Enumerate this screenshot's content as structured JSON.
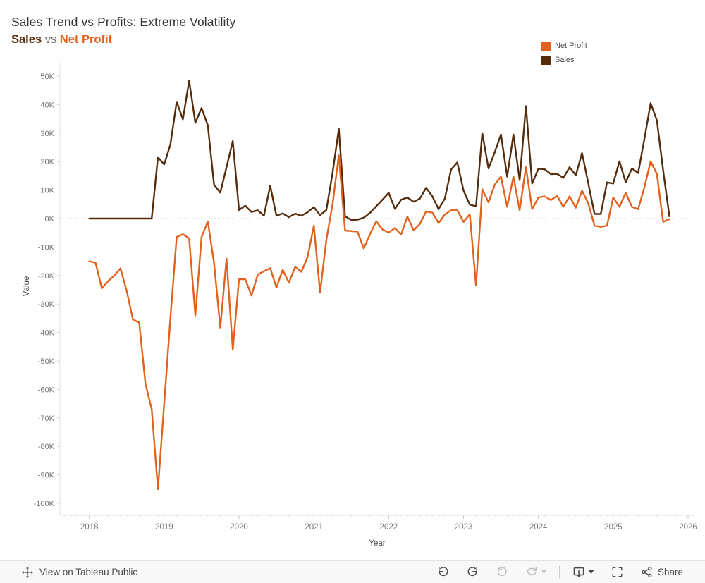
{
  "header": {
    "title": "Sales Trend vs Profits: Extreme Volatility",
    "subtitle": {
      "sales": "Sales",
      "vs": " vs ",
      "net_profit": "Net Profit"
    }
  },
  "colors": {
    "sales": "#552D0D",
    "net_profit": "#E2611C",
    "sales_title": "#5B2F10",
    "axis_text": "#767676",
    "grid_zero": "#b5b5b5"
  },
  "legend": {
    "items": [
      {
        "label": "Net Profit",
        "color": "#E2611C"
      },
      {
        "label": "Sales",
        "color": "#552D0D"
      }
    ]
  },
  "chart_data": {
    "type": "line",
    "title": "Sales Trend vs Profits: Extreme Volatility",
    "subtitle": "Sales vs Net Profit",
    "xlabel": "Year",
    "ylabel": "Value",
    "units": "thousands",
    "x_unit": "month",
    "x_start": "2018-01",
    "x_end": "2025-10",
    "ylim_thousands": [
      -104,
      54.5
    ],
    "grid": "zero-line-only",
    "legend_position": "top-right",
    "x_ticks": [
      "2018",
      "2019",
      "2020",
      "2021",
      "2022",
      "2023",
      "2024",
      "2025",
      "2026"
    ],
    "y_ticks": [
      {
        "value": 50,
        "label": "50K"
      },
      {
        "value": 40,
        "label": "40K"
      },
      {
        "value": 30,
        "label": "30K"
      },
      {
        "value": 20,
        "label": "20K"
      },
      {
        "value": 10,
        "label": "10K"
      },
      {
        "value": 0,
        "label": "0K"
      },
      {
        "value": -10,
        "label": "-10K"
      },
      {
        "value": -20,
        "label": "-20K"
      },
      {
        "value": -30,
        "label": "-30K"
      },
      {
        "value": -40,
        "label": "-40K"
      },
      {
        "value": -50,
        "label": "-50K"
      },
      {
        "value": -60,
        "label": "-60K"
      },
      {
        "value": -70,
        "label": "-70K"
      },
      {
        "value": -80,
        "label": "-80K"
      },
      {
        "value": -90,
        "label": "-90K"
      },
      {
        "value": -100,
        "label": "-100K"
      }
    ],
    "series": [
      {
        "name": "Sales",
        "color": "#552D0D",
        "values": [
          0,
          0,
          0,
          0,
          0,
          0,
          0,
          0,
          0,
          0,
          0,
          21.5,
          19,
          26,
          41,
          34.8,
          48.4,
          33.6,
          38.8,
          32.7,
          11.9,
          9.1,
          18,
          27.2,
          3.0,
          4.5,
          2.3,
          2.9,
          1.0,
          11.5,
          1.0,
          1.8,
          0.5,
          1.7,
          1.0,
          2.2,
          4.0,
          1.2,
          3.0,
          16,
          31.5,
          0.8,
          -0.5,
          -0.4,
          0.3,
          2.0,
          4.3,
          6.6,
          9.0,
          3.4,
          6.6,
          7.4,
          5.9,
          7.0,
          10.8,
          7.8,
          3.3,
          7.0,
          17.2,
          19.7,
          9.8,
          4.9,
          4.3,
          30.0,
          17.6,
          23.3,
          29.5,
          14.7,
          29.5,
          13.5,
          39.5,
          12.3,
          17.5,
          17.3,
          15.6,
          15.7,
          14.3,
          18.0,
          15.2,
          23.0,
          12.3,
          1.6,
          1.6,
          12.7,
          12.3,
          20.1,
          12.7,
          17.6,
          16.0,
          28.0,
          40.5,
          34.4,
          17.0,
          0.8
        ]
      },
      {
        "name": "Net Profit",
        "color": "#E2611C",
        "values": [
          -15,
          -15.5,
          -24.5,
          -22,
          -20,
          -17.5,
          -25.5,
          -35.5,
          -36.5,
          -58,
          -67,
          -95,
          -65,
          -35,
          -6.5,
          -5.5,
          -7,
          -34,
          -6.5,
          -1.0,
          -15.6,
          -38.3,
          -14.1,
          -46,
          -21.3,
          -21.3,
          -27,
          -19.7,
          -18.5,
          -17.4,
          -24.2,
          -18,
          -22.5,
          -17,
          -18.7,
          -13.5,
          -2.5,
          -26,
          -7.5,
          5,
          22.2,
          -4.2,
          -4.4,
          -4.6,
          -10.5,
          -5.5,
          -1.0,
          -3.8,
          -4.9,
          -3.4,
          -5.6,
          0.7,
          -4.1,
          -1.9,
          2.5,
          2.1,
          -1.6,
          1.4,
          2.9,
          2.9,
          -1.2,
          1.5,
          -23.5,
          10.3,
          5.7,
          11.9,
          14.7,
          4.1,
          14.7,
          2.9,
          18.0,
          3.3,
          7.4,
          7.8,
          6.5,
          8.0,
          4.1,
          7.8,
          3.8,
          9.8,
          5.3,
          -2.5,
          -2.9,
          -2.5,
          7.4,
          4.1,
          9.0,
          4.1,
          3.3,
          11.0,
          20.1,
          15.6,
          -1.2,
          -0.2
        ]
      }
    ]
  },
  "footer": {
    "view_label": "View on Tableau Public",
    "share_label": "Share",
    "icons": {
      "tableau-logo-icon": "plus-cluster",
      "undo-icon": "curved-arrow-left",
      "redo-icon": "curved-arrow-right",
      "revert-icon": "reset-arrow (disabled)",
      "refresh-icon": "refresh-loop (disabled)",
      "dropdown-caret-icon": "small-down-triangle",
      "download-icon": "monitor-with-down-arrow",
      "fullscreen-icon": "corner-brackets",
      "share-icon": "connected-nodes"
    }
  }
}
